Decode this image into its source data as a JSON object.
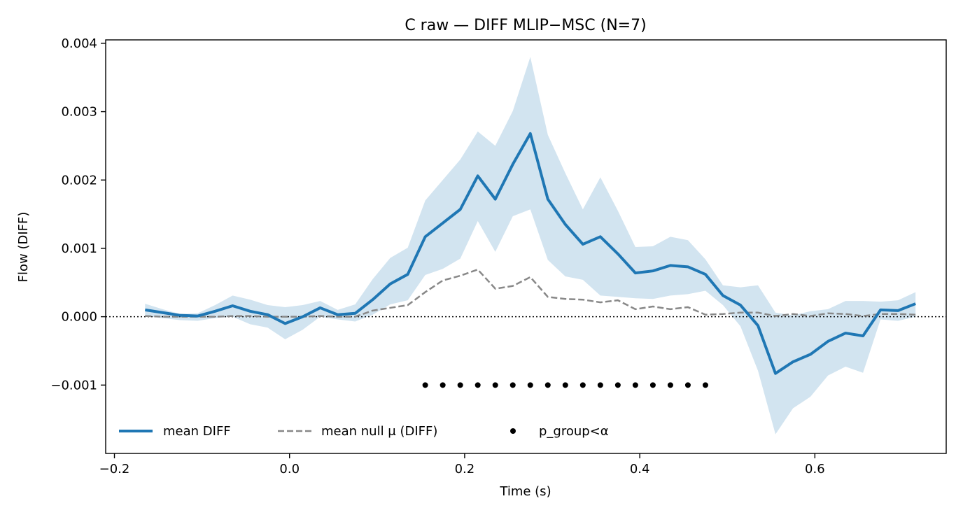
{
  "chart_data": {
    "type": "line",
    "title": "C raw — DIFF MLIP−MSC (N=7)",
    "xlabel": "Time (s)",
    "ylabel": "Flow (DIFF)",
    "xlim": [
      -0.21,
      0.75
    ],
    "ylim": [
      -0.002,
      0.00405
    ],
    "xticks": [
      -0.2,
      0.0,
      0.2,
      0.4,
      0.6
    ],
    "xtick_labels": [
      "−0.2",
      "0.0",
      "0.2",
      "0.4",
      "0.6"
    ],
    "yticks": [
      -0.001,
      0.0,
      0.001,
      0.002,
      0.003,
      0.004
    ],
    "ytick_labels": [
      "−0.001",
      "0.000",
      "0.001",
      "0.002",
      "0.003",
      "0.004"
    ],
    "grid": false,
    "legend_position": "lower-left",
    "zero_line": {
      "y": 0.0,
      "style": "dotted",
      "color": "#000000"
    },
    "x": [
      -0.165,
      -0.145,
      -0.125,
      -0.105,
      -0.085,
      -0.065,
      -0.045,
      -0.025,
      -0.005,
      0.015,
      0.035,
      0.055,
      0.075,
      0.095,
      0.115,
      0.135,
      0.155,
      0.175,
      0.195,
      0.215,
      0.235,
      0.255,
      0.275,
      0.295,
      0.315,
      0.335,
      0.355,
      0.375,
      0.395,
      0.415,
      0.435,
      0.455,
      0.475,
      0.495,
      0.515,
      0.535,
      0.555,
      0.575,
      0.595,
      0.615,
      0.635,
      0.655,
      0.675,
      0.695,
      0.715
    ],
    "series": [
      {
        "name": "mean DIFF",
        "kind": "line",
        "color": "#1f77b4",
        "values": [
          0.0001,
          6e-05,
          2e-05,
          1e-05,
          8e-05,
          0.00016,
          8e-05,
          3e-05,
          -0.0001,
          0.0,
          0.00013,
          3e-05,
          5e-05,
          0.00025,
          0.00048,
          0.00062,
          0.00117,
          0.00137,
          0.00157,
          0.00206,
          0.00172,
          0.00223,
          0.00268,
          0.00172,
          0.00135,
          0.00106,
          0.00117,
          0.00092,
          0.00064,
          0.00067,
          0.00075,
          0.00073,
          0.00062,
          0.00031,
          0.00017,
          -0.00013,
          -0.00083,
          -0.00066,
          -0.00055,
          -0.00036,
          -0.00024,
          -0.00028,
          0.0001,
          9e-05,
          0.00019
        ],
        "band_upper": [
          0.00019,
          0.00011,
          4e-05,
          5e-05,
          0.00017,
          0.00031,
          0.00025,
          0.00017,
          0.00014,
          0.00017,
          0.00023,
          0.0001,
          0.00018,
          0.00055,
          0.00086,
          0.00101,
          0.0017,
          0.002,
          0.0023,
          0.00271,
          0.0025,
          0.00301,
          0.0038,
          0.00266,
          0.0021,
          0.00157,
          0.00204,
          0.00155,
          0.00102,
          0.00103,
          0.00117,
          0.00112,
          0.00084,
          0.00046,
          0.00043,
          0.00046,
          6e-05,
          2e-05,
          8e-05,
          0.00011,
          0.00023,
          0.00023,
          0.00022,
          0.00024,
          0.00036
        ],
        "band_lower": [
          1e-05,
          -2e-05,
          -5e-05,
          -6e-05,
          -2e-05,
          0.0,
          -0.00011,
          -0.00016,
          -0.00033,
          -0.00019,
          0.0,
          -4e-05,
          -7e-05,
          3e-05,
          0.00018,
          0.00024,
          0.00061,
          0.0007,
          0.00085,
          0.0014,
          0.00095,
          0.00147,
          0.00157,
          0.00083,
          0.00059,
          0.00054,
          0.00031,
          0.00029,
          0.00027,
          0.00026,
          0.00031,
          0.00033,
          0.00038,
          0.00017,
          -0.00014,
          -0.00079,
          -0.00172,
          -0.00134,
          -0.00117,
          -0.00086,
          -0.00073,
          -0.00082,
          -4e-05,
          -6e-05,
          0.0
        ]
      },
      {
        "name": "mean null μ (DIFF)",
        "kind": "dashed-line",
        "color": "#888888",
        "values": [
          1e-05,
          0.0,
          0.0,
          0.0,
          0.0,
          1e-05,
          1e-05,
          0.0,
          0.0,
          0.0,
          1e-05,
          0.0,
          0.0,
          9e-05,
          0.00013,
          0.00017,
          0.00036,
          0.00053,
          0.0006,
          0.00069,
          0.00041,
          0.00045,
          0.00058,
          0.00029,
          0.00026,
          0.00025,
          0.00021,
          0.00024,
          0.00011,
          0.00015,
          0.00011,
          0.00014,
          3e-05,
          4e-05,
          6e-05,
          6e-05,
          1e-05,
          4e-05,
          1e-05,
          5e-05,
          4e-05,
          1e-05,
          4e-05,
          4e-05,
          3e-05
        ]
      },
      {
        "name": "p_group<α",
        "kind": "markers",
        "color": "#000000",
        "x": [
          0.155,
          0.175,
          0.195,
          0.215,
          0.235,
          0.255,
          0.275,
          0.295,
          0.315,
          0.335,
          0.355,
          0.375,
          0.395,
          0.415,
          0.435,
          0.455,
          0.475
        ],
        "y": -0.001
      }
    ]
  }
}
